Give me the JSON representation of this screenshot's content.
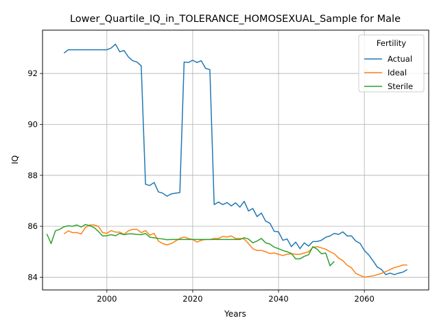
{
  "chart_data": {
    "type": "line",
    "title": "Lower_Quartile_IQ_in_TOLERANCE_HOMOSEXUAL_Sample for Male",
    "xlabel": "Years",
    "ylabel": "IQ",
    "xlim": [
      1985,
      2075
    ],
    "ylim": [
      83.5,
      93.7
    ],
    "xticks": [
      2000,
      2020,
      2040,
      2060
    ],
    "yticks": [
      84,
      86,
      88,
      90,
      92
    ],
    "grid": true,
    "legend": {
      "title": "Fertility",
      "position": "top-right"
    },
    "series": [
      {
        "name": "Actual",
        "color": "#1f77b4",
        "x": [
          1990,
          1991,
          1992,
          1993,
          1994,
          1995,
          1996,
          1997,
          1998,
          1999,
          2000,
          2001,
          2002,
          2003,
          2004,
          2005,
          2006,
          2007,
          2008,
          2009,
          2010,
          2011,
          2012,
          2013,
          2014,
          2015,
          2016,
          2017,
          2018,
          2019,
          2020,
          2021,
          2022,
          2023,
          2024,
          2025,
          2026,
          2027,
          2028,
          2029,
          2030,
          2031,
          2032,
          2033,
          2034,
          2035,
          2036,
          2037,
          2038,
          2039,
          2040,
          2041,
          2042,
          2043,
          2044,
          2045,
          2046,
          2047,
          2048,
          2049,
          2050,
          2051,
          2052,
          2053,
          2054,
          2055,
          2056,
          2057,
          2058,
          2059,
          2060,
          2061,
          2062,
          2063,
          2064,
          2065,
          2066,
          2067,
          2068,
          2069,
          2070
        ],
        "y": [
          92.8,
          92.93,
          92.93,
          92.93,
          92.93,
          92.93,
          92.93,
          92.93,
          92.93,
          92.93,
          92.93,
          93.0,
          93.15,
          92.85,
          92.9,
          92.65,
          92.5,
          92.45,
          92.3,
          87.65,
          87.6,
          87.72,
          87.35,
          87.3,
          87.18,
          87.27,
          87.3,
          87.32,
          92.45,
          92.43,
          92.52,
          92.43,
          92.5,
          92.2,
          92.15,
          86.85,
          86.95,
          86.85,
          86.93,
          86.8,
          86.92,
          86.75,
          86.98,
          86.6,
          86.7,
          86.38,
          86.52,
          86.2,
          86.12,
          85.8,
          85.78,
          85.45,
          85.5,
          85.2,
          85.38,
          85.12,
          85.35,
          85.22,
          85.4,
          85.4,
          85.45,
          85.57,
          85.62,
          85.72,
          85.68,
          85.78,
          85.62,
          85.62,
          85.42,
          85.33,
          85.05,
          84.88,
          84.65,
          84.4,
          84.3,
          84.1,
          84.16,
          84.1,
          84.16,
          84.2,
          84.3
        ]
      },
      {
        "name": "Ideal",
        "color": "#ff7f0e",
        "x": [
          1990,
          1991,
          1992,
          1993,
          1994,
          1995,
          1996,
          1997,
          1998,
          1999,
          2000,
          2001,
          2002,
          2003,
          2004,
          2005,
          2006,
          2007,
          2008,
          2009,
          2010,
          2011,
          2012,
          2013,
          2014,
          2015,
          2016,
          2017,
          2018,
          2019,
          2020,
          2021,
          2022,
          2023,
          2024,
          2025,
          2026,
          2027,
          2028,
          2029,
          2030,
          2031,
          2032,
          2033,
          2034,
          2035,
          2036,
          2037,
          2038,
          2039,
          2040,
          2041,
          2042,
          2043,
          2044,
          2045,
          2046,
          2047,
          2048,
          2049,
          2050,
          2051,
          2052,
          2053,
          2054,
          2055,
          2056,
          2057,
          2058,
          2059,
          2060,
          2061,
          2062,
          2063,
          2064,
          2065,
          2066,
          2067,
          2068,
          2069,
          2070
        ],
        "y": [
          85.7,
          85.82,
          85.75,
          85.75,
          85.7,
          85.95,
          86.05,
          86.05,
          86.0,
          85.75,
          85.72,
          85.83,
          85.77,
          85.77,
          85.68,
          85.82,
          85.88,
          85.88,
          85.75,
          85.83,
          85.65,
          85.72,
          85.42,
          85.32,
          85.27,
          85.32,
          85.42,
          85.52,
          85.58,
          85.52,
          85.48,
          85.38,
          85.45,
          85.48,
          85.48,
          85.52,
          85.52,
          85.6,
          85.58,
          85.62,
          85.52,
          85.52,
          85.5,
          85.32,
          85.12,
          85.05,
          85.05,
          85.0,
          84.93,
          84.95,
          84.9,
          84.85,
          84.9,
          84.92,
          84.9,
          84.9,
          84.95,
          85.0,
          85.17,
          85.2,
          85.15,
          85.1,
          85.0,
          84.92,
          84.75,
          84.65,
          84.47,
          84.37,
          84.15,
          84.07,
          84.0,
          84.03,
          84.05,
          84.1,
          84.15,
          84.22,
          84.3,
          84.38,
          84.42,
          84.48,
          84.48
        ]
      },
      {
        "name": "Sterile",
        "color": "#2ca02c",
        "x": [
          1986,
          1987,
          1988,
          1989,
          1990,
          1991,
          1992,
          1993,
          1994,
          1995,
          1996,
          1997,
          1998,
          1999,
          2000,
          2001,
          2002,
          2003,
          2004,
          2005,
          2006,
          2007,
          2008,
          2009,
          2010,
          2011,
          2012,
          2013,
          2014,
          2015,
          2016,
          2017,
          2018,
          2019,
          2020,
          2021,
          2022,
          2023,
          2024,
          2025,
          2026,
          2027,
          2028,
          2029,
          2030,
          2031,
          2032,
          2033,
          2034,
          2035,
          2036,
          2037,
          2038,
          2039,
          2040,
          2041,
          2042,
          2043,
          2044,
          2045,
          2046,
          2047,
          2048,
          2049,
          2050,
          2051,
          2052,
          2053
        ],
        "y": [
          85.7,
          85.32,
          85.82,
          85.88,
          85.98,
          86.02,
          86.0,
          86.05,
          85.97,
          86.07,
          86.02,
          85.95,
          85.8,
          85.62,
          85.63,
          85.67,
          85.63,
          85.72,
          85.67,
          85.7,
          85.7,
          85.68,
          85.67,
          85.72,
          85.57,
          85.55,
          85.52,
          85.5,
          85.47,
          85.48,
          85.48,
          85.48,
          85.48,
          85.48,
          85.48,
          85.48,
          85.48,
          85.48,
          85.48,
          85.48,
          85.48,
          85.48,
          85.48,
          85.48,
          85.48,
          85.48,
          85.55,
          85.5,
          85.35,
          85.42,
          85.52,
          85.35,
          85.3,
          85.18,
          85.12,
          85.05,
          85.0,
          84.93,
          84.72,
          84.72,
          84.82,
          84.88,
          85.2,
          85.1,
          84.92,
          84.95,
          84.45,
          84.62
        ]
      }
    ]
  }
}
